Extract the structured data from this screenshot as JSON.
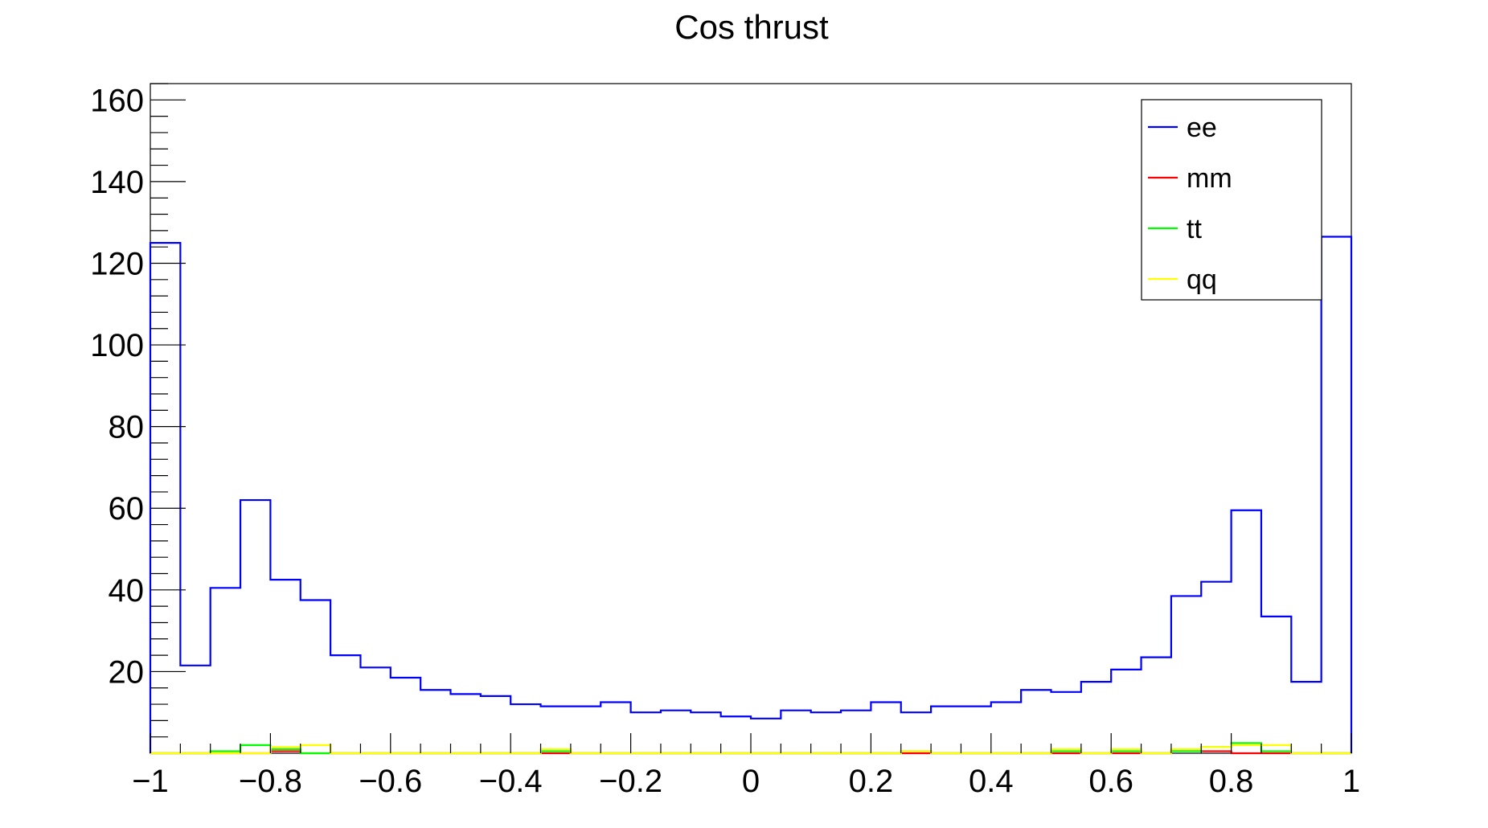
{
  "chart_data": {
    "type": "histogram",
    "title": "Cos thrust",
    "xlim": [
      -1,
      1
    ],
    "ylim": [
      0,
      164
    ],
    "grid": false,
    "legend_position": "top-right",
    "x_ticks": [
      {
        "value": -1,
        "label": "−1"
      },
      {
        "value": -0.8,
        "label": "−0.8"
      },
      {
        "value": -0.6,
        "label": "−0.6"
      },
      {
        "value": -0.4,
        "label": "−0.4"
      },
      {
        "value": -0.2,
        "label": "−0.2"
      },
      {
        "value": 0,
        "label": "0"
      },
      {
        "value": 0.2,
        "label": "0.2"
      },
      {
        "value": 0.4,
        "label": "0.4"
      },
      {
        "value": 0.6,
        "label": "0.6"
      },
      {
        "value": 0.8,
        "label": "0.8"
      },
      {
        "value": 1,
        "label": "1"
      }
    ],
    "y_ticks": [
      {
        "value": 20,
        "label": "20"
      },
      {
        "value": 40,
        "label": "40"
      },
      {
        "value": 60,
        "label": "60"
      },
      {
        "value": 80,
        "label": "80"
      },
      {
        "value": 100,
        "label": "100"
      },
      {
        "value": 120,
        "label": "120"
      },
      {
        "value": 140,
        "label": "140"
      },
      {
        "value": 160,
        "label": "160"
      }
    ],
    "bin_edges_start": -1,
    "bin_width": 0.05,
    "series": [
      {
        "name": "ee",
        "color": "#0000ff",
        "values": [
          125,
          21.5,
          40.5,
          62,
          42.5,
          37.5,
          24,
          21,
          18.5,
          15.5,
          14.5,
          14,
          12,
          11.5,
          11.5,
          12.5,
          10,
          10.5,
          10,
          9,
          8.5,
          10.5,
          10,
          10.5,
          12.5,
          10,
          11.5,
          11.5,
          12.5,
          15.5,
          15,
          17.5,
          20.5,
          23.5,
          38.5,
          42,
          59.5,
          33.5,
          17.5,
          126.5
        ]
      },
      {
        "name": "mm",
        "color": "#ff0000",
        "values": [
          0,
          0,
          0,
          0,
          0.5,
          0,
          0,
          0,
          0,
          0,
          0,
          0,
          0,
          0,
          0,
          0,
          0,
          0,
          0,
          0,
          0,
          0,
          0,
          0,
          0,
          0,
          0,
          0,
          0,
          0,
          0,
          0,
          0,
          0,
          0.5,
          0.5,
          0,
          0,
          0,
          0
        ]
      },
      {
        "name": "tt",
        "color": "#00ff00",
        "values": [
          0,
          0,
          0.5,
          2,
          1,
          0,
          0,
          0,
          0,
          0,
          0,
          0,
          0,
          0.5,
          0,
          0,
          0,
          0,
          0,
          0,
          0,
          0,
          0,
          0,
          0,
          0.5,
          0,
          0,
          0,
          0,
          0.5,
          0,
          0.5,
          0,
          0.5,
          1.5,
          2.5,
          0.5,
          0,
          0
        ]
      },
      {
        "name": "qq",
        "color": "#ffff00",
        "values": [
          0,
          0,
          0,
          0,
          1.5,
          2,
          0,
          0,
          0,
          0,
          0,
          0,
          0,
          1,
          0,
          0,
          0,
          0,
          0,
          0,
          0,
          0,
          0,
          0,
          0,
          0.5,
          0,
          0,
          0,
          0,
          1,
          0,
          1,
          0,
          1,
          1.5,
          2,
          2,
          0,
          0
        ]
      }
    ]
  }
}
